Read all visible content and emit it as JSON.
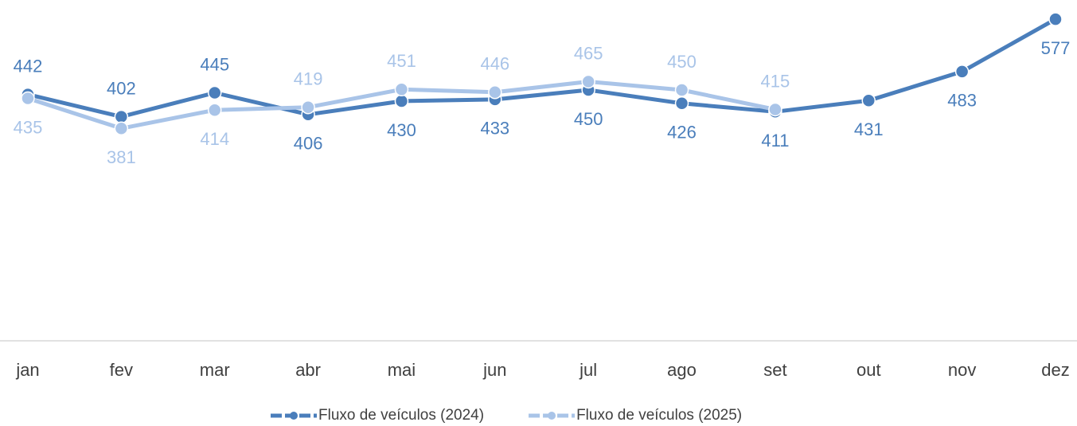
{
  "chart_data": {
    "type": "line",
    "categories": [
      "jan",
      "fev",
      "mar",
      "abr",
      "mai",
      "jun",
      "jul",
      "ago",
      "set",
      "out",
      "nov",
      "dez"
    ],
    "series": [
      {
        "name": "Fluxo de veículos (2024)",
        "color": "#4a7ebb",
        "values": [
          442,
          402,
          445,
          406,
          430,
          433,
          450,
          426,
          411,
          431,
          483,
          577
        ]
      },
      {
        "name": "Fluxo de veículos (2025)",
        "color": "#a9c4e8",
        "values": [
          435,
          381,
          414,
          419,
          451,
          446,
          465,
          450,
          415,
          null,
          null,
          null
        ]
      }
    ],
    "ylim": [
      0,
      600
    ],
    "grid": false,
    "legend": "bottom",
    "data_labels": true
  }
}
